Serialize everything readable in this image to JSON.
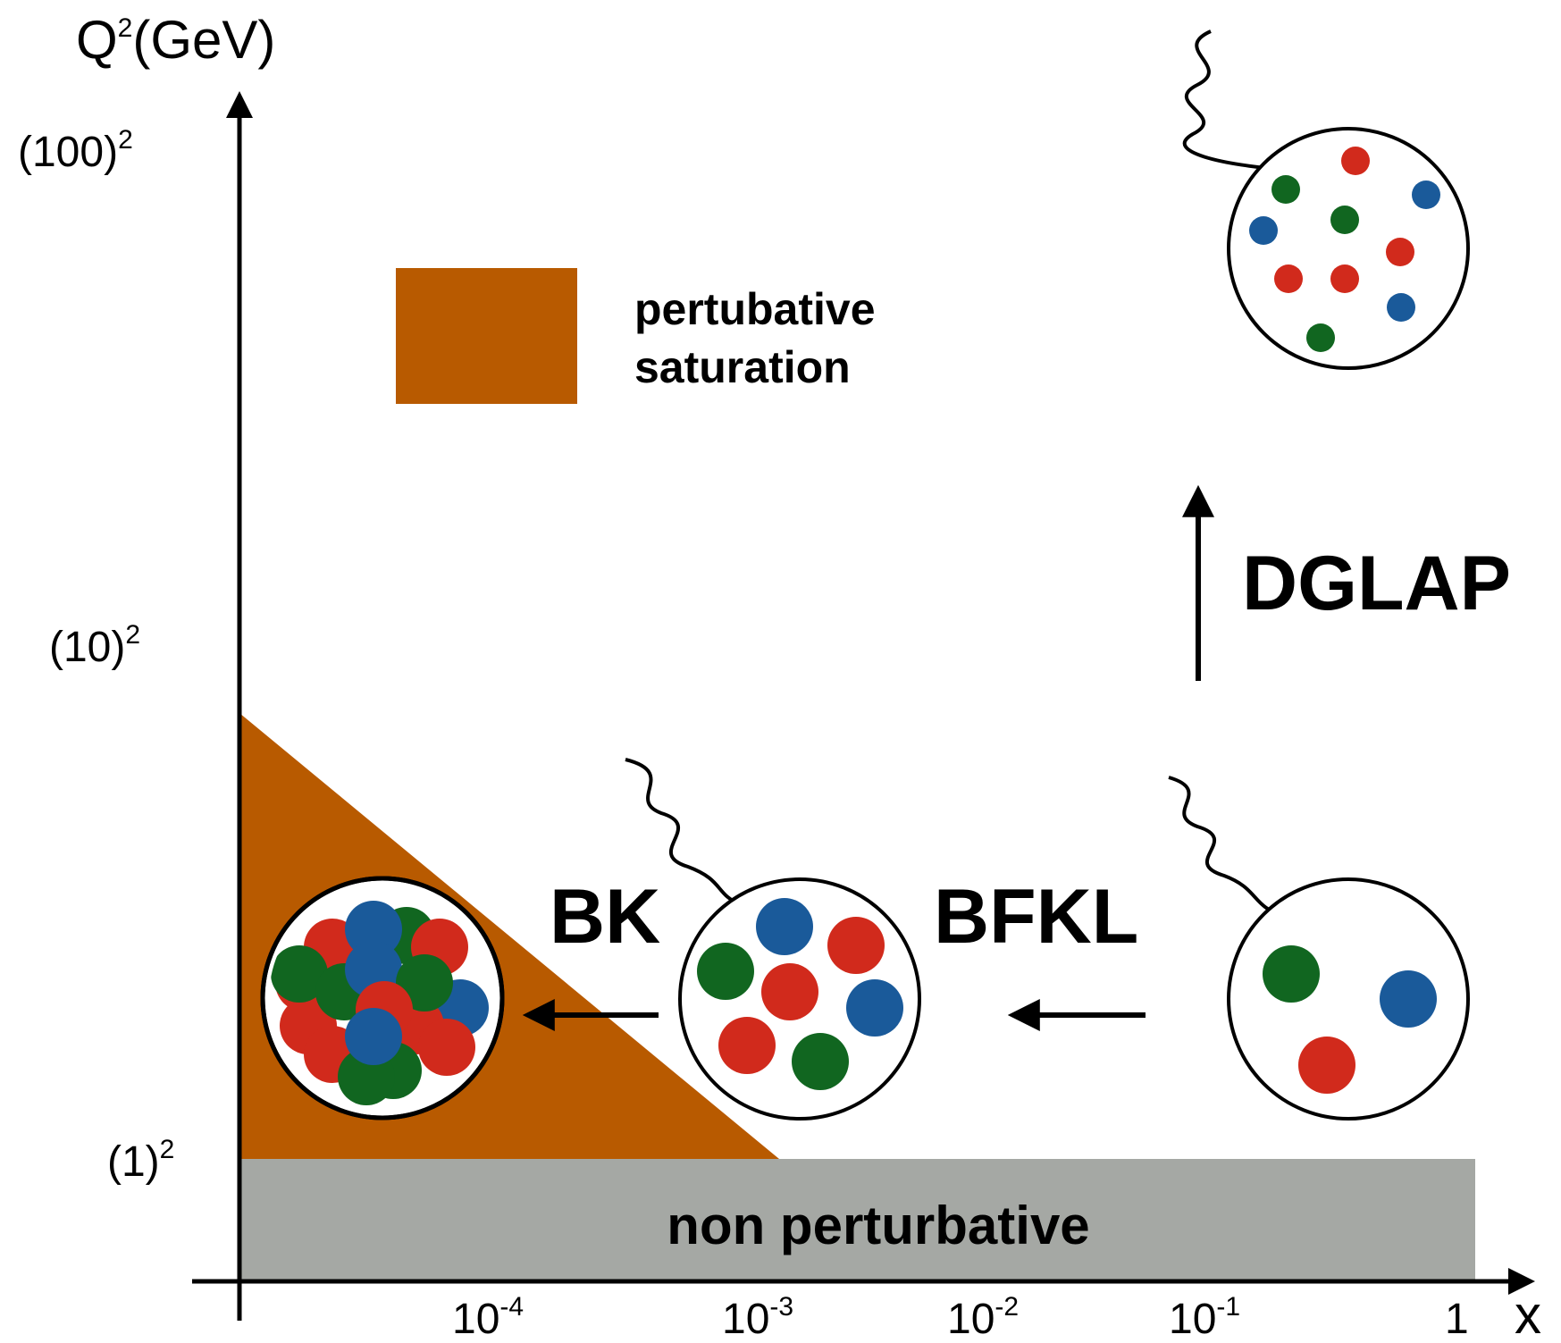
{
  "axes": {
    "y_title": {
      "base": "Q",
      "sup": "2",
      "rest": "(GeV)"
    },
    "x_title": "x",
    "y_ticks": [
      {
        "base": "(100)",
        "sup": "2"
      },
      {
        "base": "(10)",
        "sup": "2"
      },
      {
        "base": "(1)",
        "sup": "2"
      }
    ],
    "x_ticks": [
      {
        "base": "10",
        "sup": "-4"
      },
      {
        "base": "10",
        "sup": "-3"
      },
      {
        "base": "10",
        "sup": "-2"
      },
      {
        "base": "10",
        "sup": "-1"
      },
      {
        "base": "1",
        "sup": ""
      }
    ]
  },
  "regions": {
    "non_perturbative": "non perturbative",
    "saturation_legend_line1": "pertubative",
    "saturation_legend_line2": "saturation"
  },
  "evolution_labels": {
    "bk": "BK",
    "bfkl": "BFKL",
    "dglap": "DGLAP"
  },
  "colors": {
    "saturation": "#b85a00",
    "non_perturbative": "#a5a8a4",
    "parton_red": "#d12a1c",
    "parton_green": "#116620",
    "parton_blue": "#1a5a9a"
  }
}
